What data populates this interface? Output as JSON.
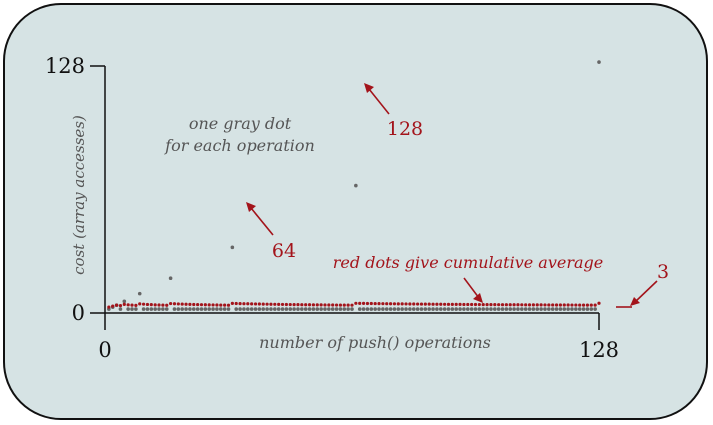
{
  "chart_data": {
    "type": "scatter",
    "title": "",
    "xlabel": "number of push() operations",
    "ylabel": "cost (array accesses)",
    "xlim": [
      0,
      128
    ],
    "ylim": [
      0,
      128
    ],
    "x_ticks": [
      "0",
      "128"
    ],
    "y_ticks": [
      "128",
      "0"
    ],
    "grid": false,
    "series": [
      {
        "values": [
          1,
          2,
          3,
          1,
          5,
          1,
          1,
          1,
          9,
          1,
          1,
          1,
          1,
          1,
          1,
          1,
          17,
          1,
          1,
          1,
          1,
          1,
          1,
          1,
          1,
          1,
          1,
          1,
          1,
          1,
          1,
          1,
          33,
          1,
          1,
          1,
          1,
          1,
          1,
          1,
          1,
          1,
          1,
          1,
          1,
          1,
          1,
          1,
          1,
          1,
          1,
          1,
          1,
          1,
          1,
          1,
          1,
          1,
          1,
          1,
          1,
          1,
          1,
          1,
          65,
          1,
          1,
          1,
          1,
          1,
          1,
          1,
          1,
          1,
          1,
          1,
          1,
          1,
          1,
          1,
          1,
          1,
          1,
          1,
          1,
          1,
          1,
          1,
          1,
          1,
          1,
          1,
          1,
          1,
          1,
          1,
          1,
          1,
          1,
          1,
          1,
          1,
          1,
          1,
          1,
          1,
          1,
          1,
          1,
          1,
          1,
          1,
          1,
          1,
          1,
          1,
          1,
          1,
          1,
          1,
          1,
          1,
          1,
          1,
          1,
          1,
          1,
          129
        ],
        "color": "#666666"
      },
      {
        "values": "cumulative-average",
        "color": "#a3141b"
      }
    ],
    "annotations": {
      "gray_dot_note": [
        "one gray dot",
        "for each operation"
      ],
      "label_64": "64",
      "label_128": "128",
      "red_dot_note": "red dots give cumulative average",
      "label_3": "3"
    }
  }
}
